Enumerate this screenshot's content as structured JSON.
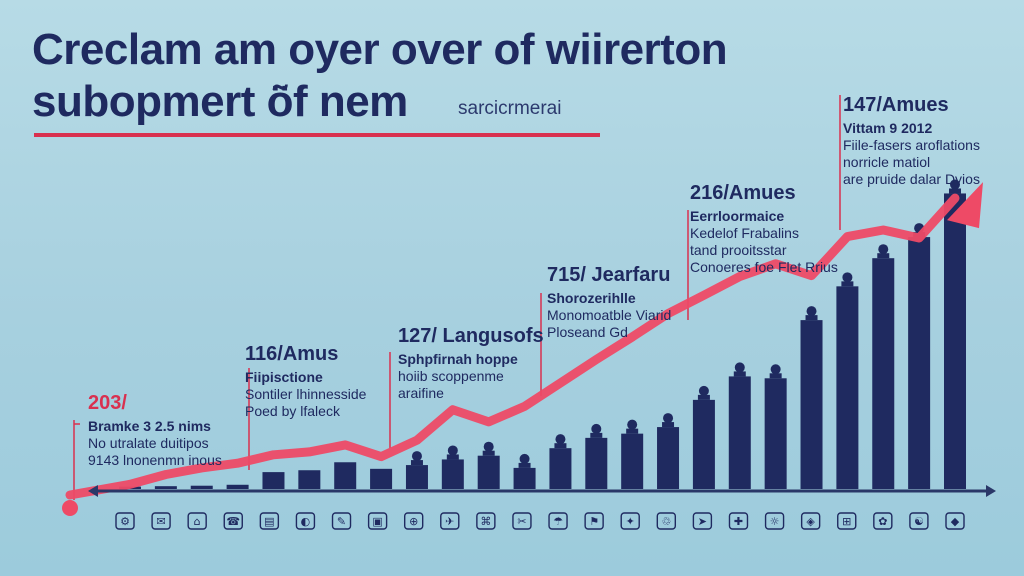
{
  "title": {
    "line1": "Creclam am oyer over of wiirerton",
    "line2": "subopmert ö̃f nem",
    "subtitle": "sarcicrmerai"
  },
  "chart_data": {
    "type": "bar",
    "categories": [
      "",
      "",
      "",
      "",
      "",
      "",
      "",
      "",
      "",
      "",
      "",
      "",
      "",
      "",
      "",
      "",
      "",
      "",
      "",
      "",
      "",
      "",
      "",
      ""
    ],
    "values": [
      0.5,
      0.6,
      0.7,
      0.9,
      3.6,
      4.0,
      5.7,
      4.3,
      5.1,
      6.3,
      7.1,
      4.5,
      8.7,
      10.9,
      11.8,
      13.2,
      19.0,
      24.0,
      23.6,
      36.0,
      43.2,
      49.2,
      53.7,
      63.0
    ],
    "line_values": [
      1.0,
      3.1,
      4.5,
      5.5,
      7.3,
      7.9,
      9.4,
      6.9,
      10.4,
      16.9,
      14.3,
      17.6,
      22.6,
      27.6,
      32.4,
      37.4,
      41.3,
      45.3,
      48.0,
      45.5,
      53.8,
      55.2,
      53.5,
      62.0
    ],
    "ylim": [
      0,
      68
    ],
    "accent_colors": {
      "bars": "#1f2a60",
      "trend": "#ee4a66",
      "axis": "#2a3768"
    },
    "annotations": [
      {
        "head": "203/",
        "lines": [
          "Bramke 3 2.5 nims",
          "No utralate duitipos",
          "9143 lnonenmn inous"
        ]
      },
      {
        "head": "116/Amus",
        "lines": [
          "Fiipisctione",
          "Sontiler lhinnesside",
          "Poed by lfaleck"
        ]
      },
      {
        "head": "127/ Langusofs",
        "lines": [
          "Sphpfirnah hoppe",
          "hoiib scoppenme",
          "araifine"
        ]
      },
      {
        "head": "715/ Jearfaru",
        "lines": [
          "Shorozerihlle",
          "Monomoatble Viarid",
          "Ploseand Gd"
        ]
      },
      {
        "head": "216/Amues",
        "lines": [
          "Eerrloormaice",
          "Kedelof Frabalins",
          "tand prooitsstar",
          "Conoeres foe Flet Rrius"
        ]
      },
      {
        "head": "147/Amues",
        "lines": [
          "Vittam 9 2012",
          "Fiile-fasers aroflations",
          "norricle matiol",
          "are pruide dalar Dyios"
        ]
      }
    ]
  }
}
